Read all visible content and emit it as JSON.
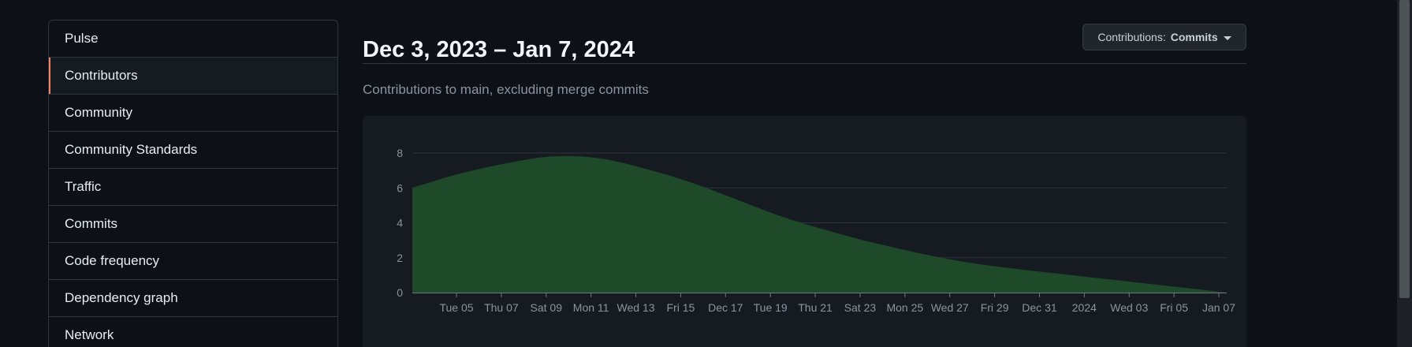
{
  "sidebar": {
    "items": [
      {
        "label": "Pulse"
      },
      {
        "label": "Contributors"
      },
      {
        "label": "Community"
      },
      {
        "label": "Community Standards"
      },
      {
        "label": "Traffic"
      },
      {
        "label": "Commits"
      },
      {
        "label": "Code frequency"
      },
      {
        "label": "Dependency graph"
      },
      {
        "label": "Network"
      }
    ],
    "selected_index": 1
  },
  "header": {
    "title": "Dec 3, 2023 – Jan 7, 2024",
    "dropdown_prefix": "Contributions:",
    "dropdown_value": "Commits"
  },
  "main": {
    "subtitle": "Contributions to main, excluding merge commits"
  },
  "colors": {
    "accent_selected": "#f78166",
    "area_fill": "#1f4a2a",
    "area_stroke": "#2ea043"
  },
  "chart_data": {
    "type": "area",
    "title": "",
    "xlabel": "",
    "ylabel": "",
    "ylim": [
      0,
      8
    ],
    "y_ticks": [
      "0",
      "2",
      "4",
      "6",
      "8"
    ],
    "x_ticks": [
      "Tue 05",
      "Thu 07",
      "Sat 09",
      "Mon 11",
      "Wed 13",
      "Fri 15",
      "Dec 17",
      "Tue 19",
      "Thu 21",
      "Sat 23",
      "Mon 25",
      "Wed 27",
      "Fri 29",
      "Dec 31",
      "2024",
      "Wed 03",
      "Fri 05",
      "Jan 07"
    ],
    "grid": true,
    "series": [
      {
        "x": [
          "2023-12-03",
          "2023-12-05",
          "2023-12-07",
          "2023-12-09",
          "2023-12-11",
          "2023-12-13",
          "2023-12-15",
          "2023-12-17",
          "2023-12-19",
          "2023-12-21",
          "2023-12-23",
          "2023-12-25",
          "2023-12-27",
          "2023-12-29",
          "2023-12-31",
          "2024-01-02",
          "2024-01-04",
          "2024-01-06",
          "2024-01-07"
        ],
        "values": [
          6.0,
          6.8,
          7.4,
          7.8,
          7.7,
          7.1,
          6.3,
          5.3,
          4.3,
          3.5,
          2.8,
          2.2,
          1.7,
          1.35,
          1.05,
          0.75,
          0.45,
          0.15,
          0.0
        ]
      }
    ]
  }
}
